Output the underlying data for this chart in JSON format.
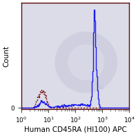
{
  "xlabel": "Human CD45RA (HI100) APC",
  "ylabel": "Count",
  "background_color": "#ffffff",
  "plot_bg_color": "#dcdce8",
  "border_color": "#5a0a0a",
  "solid_line_color": "#1a1aee",
  "dashed_line_color": "#7a1515",
  "watermark_color": "#c8c8dc",
  "xlabel_fontsize": 7.5,
  "ylabel_fontsize": 7.5,
  "tick_fontsize": 6.5,
  "xlim": [
    1,
    10000
  ],
  "n_bins": 256
}
